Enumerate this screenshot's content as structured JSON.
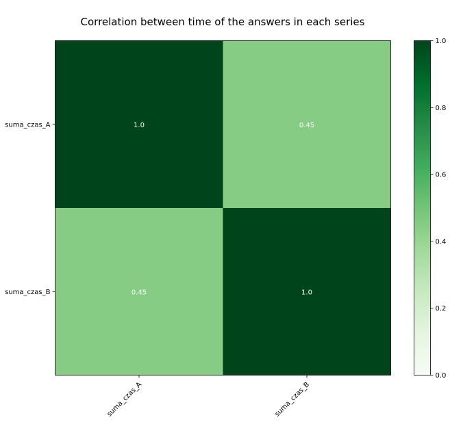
{
  "chart_data": {
    "type": "heatmap",
    "title": "Correlation between time of the answers in each series",
    "x_categories": [
      "suma_czas_A",
      "suma_czas_B"
    ],
    "y_categories": [
      "suma_czas_A",
      "suma_czas_B"
    ],
    "values": [
      [
        1.0,
        0.45
      ],
      [
        0.45,
        1.0
      ]
    ],
    "cell_labels": [
      [
        "1.0",
        "0.45"
      ],
      [
        "0.45",
        "1.0"
      ]
    ],
    "colorbar": {
      "range": [
        0.0,
        1.0
      ],
      "ticks": [
        "0.0",
        "0.2",
        "0.4",
        "0.6",
        "0.8",
        "1.0"
      ],
      "colormap": "Greens",
      "colors": [
        "#f7fcf5",
        "#e5f5e0",
        "#c7e9c0",
        "#a1d99b",
        "#74c476",
        "#41ab5d",
        "#238b45",
        "#006d2c",
        "#00441b"
      ]
    },
    "cell_text_color": "#ffffff",
    "grid": false,
    "legend": "none"
  }
}
